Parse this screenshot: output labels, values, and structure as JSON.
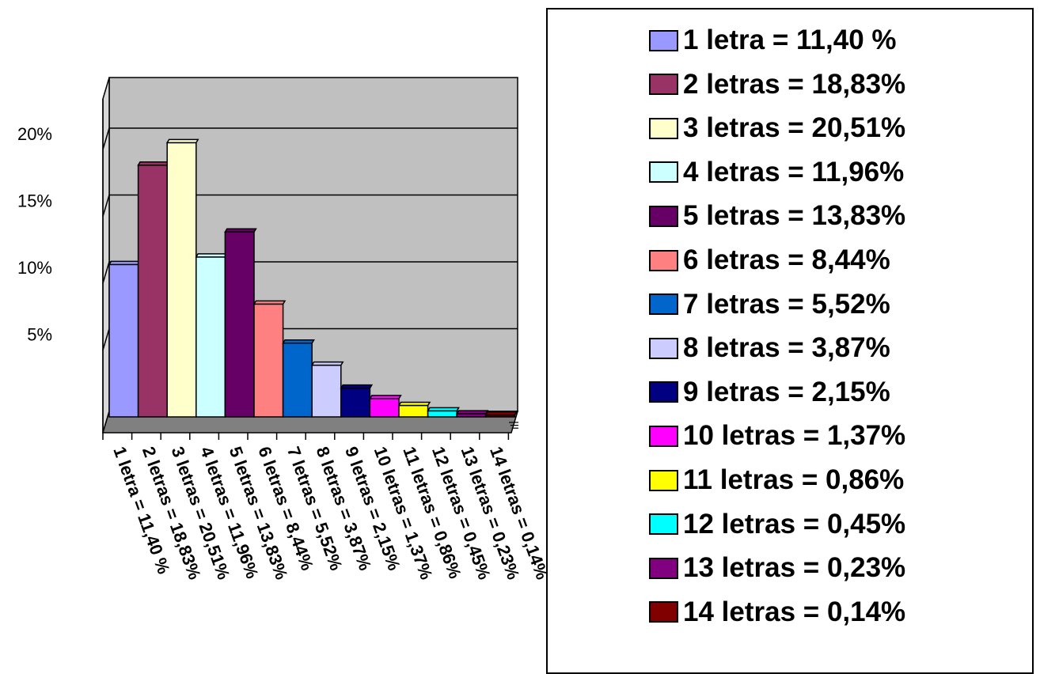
{
  "chart_data": {
    "type": "bar",
    "title": "",
    "xlabel": "",
    "ylabel": "",
    "ylim": [
      0,
      25
    ],
    "y_ticks": [
      {
        "value": 5,
        "label": "5%"
      },
      {
        "value": 10,
        "label": "10%"
      },
      {
        "value": 15,
        "label": "15%"
      },
      {
        "value": 20,
        "label": "20%"
      }
    ],
    "grid": true,
    "legend_position": "right",
    "style": "3d-bar",
    "categories": [
      "1 letra = 11,40 %",
      "2 letras = 18,83%",
      "3 letras = 20,51%",
      "4 letras = 11,96%",
      "5 letras = 13,83%",
      "6 letras = 8,44%",
      "7 letras = 5,52%",
      "8 letras = 3,87%",
      "9 letras = 2,15%",
      "10 letras = 1,37%",
      "11 letras = 0,86%",
      "12 letras = 0,45%",
      "13 letras = 0,23%",
      "14 letras = 0,14%"
    ],
    "values": [
      11.4,
      18.83,
      20.51,
      11.96,
      13.83,
      8.44,
      5.52,
      3.87,
      2.15,
      1.37,
      0.86,
      0.45,
      0.23,
      0.14
    ],
    "colors": [
      "#9999ff",
      "#993366",
      "#ffffcc",
      "#ccffff",
      "#660066",
      "#ff8080",
      "#0066cc",
      "#ccccff",
      "#000080",
      "#ff00ff",
      "#ffff00",
      "#00ffff",
      "#800080",
      "#800000"
    ],
    "background_color": "#c0c0c0",
    "floor_color": "#808080"
  }
}
